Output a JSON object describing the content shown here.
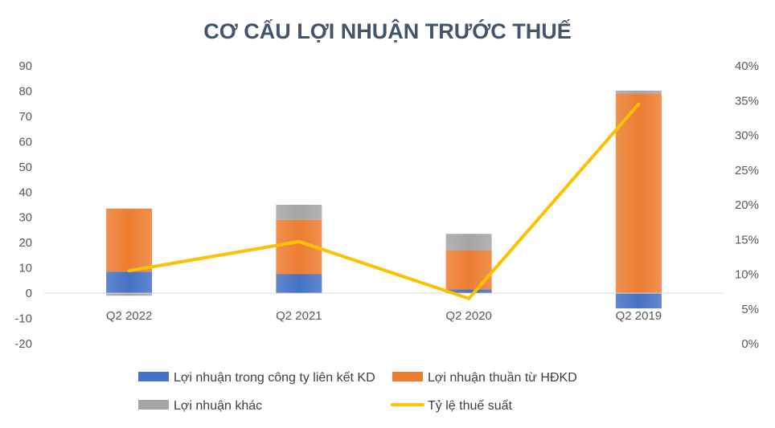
{
  "chart_data": {
    "type": "bar",
    "title": "CƠ CẤU LỢI NHUẬN TRƯỚC THUẾ",
    "categories": [
      "Q2 2022",
      "Q2 2021",
      "Q2 2020",
      "Q2 2019"
    ],
    "y_left": {
      "min": -20,
      "max": 90,
      "step": 10,
      "ticks": [
        "-20",
        "-10",
        "0",
        "10",
        "20",
        "30",
        "40",
        "50",
        "60",
        "70",
        "80",
        "90"
      ]
    },
    "y_right": {
      "min": 0,
      "max": 40,
      "step": 5,
      "ticks": [
        "0%",
        "5%",
        "10%",
        "15%",
        "20%",
        "25%",
        "30%",
        "35%",
        "40%"
      ]
    },
    "series": [
      {
        "name": "Lợi nhuận trong công ty liên kết KD",
        "kind": "bar",
        "color": "#4472C4",
        "values": [
          8.5,
          7.5,
          1.5,
          -6
        ]
      },
      {
        "name": "Lợi nhuận thuần từ HĐKD",
        "kind": "bar",
        "color": "#ED7D31",
        "values": [
          25,
          21.5,
          15.5,
          79
        ]
      },
      {
        "name": "Lợi nhuận khác",
        "kind": "bar",
        "color": "#A5A5A5",
        "values": [
          -1,
          6,
          6.5,
          1.2
        ]
      },
      {
        "name": "Tỷ lệ thuế suất",
        "kind": "line",
        "axis": "right",
        "color": "#FFC000",
        "values": [
          10.5,
          14.7,
          6.5,
          34.5
        ]
      }
    ],
    "legend_position": "bottom",
    "grid": false
  }
}
